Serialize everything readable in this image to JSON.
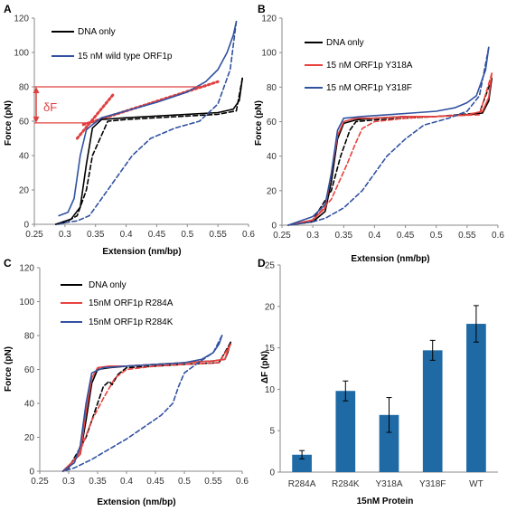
{
  "colors": {
    "dna_only": "#000000",
    "wild_type": "#3152a0",
    "y318a": "#e8423f",
    "y318f": "#3152a0",
    "r284a": "#e8423f",
    "r284k": "#3152a0",
    "bar": "#1f6aa5",
    "annotation": "#e0403f",
    "axis": "#8a8a8a"
  },
  "chart_data": [
    {
      "panel": "A",
      "type": "line",
      "xlabel": "Extension (nm/bp)",
      "ylabel": "Force (pN)",
      "xlim": [
        0.25,
        0.6
      ],
      "ylim": [
        0,
        120
      ],
      "xticks": [
        0.25,
        0.3,
        0.35,
        0.4,
        0.45,
        0.5,
        0.55,
        0.6
      ],
      "xtick_labels": [
        "0.25",
        "0.3",
        "0.35",
        "0.4",
        "0.45",
        "0.5",
        "0.55",
        "0.6"
      ],
      "yticks": [
        0,
        20,
        40,
        60,
        80,
        100,
        120
      ],
      "legend_position": "top-left",
      "legend": [
        {
          "label": "DNA only",
          "color_key": "dna_only"
        },
        {
          "label": "15 nM wild type ORF1p",
          "color_key": "wild_type"
        }
      ],
      "series": [
        {
          "name": "DNA only",
          "style": "solid",
          "color_key": "dna_only",
          "x": [
            0.285,
            0.31,
            0.325,
            0.335,
            0.345,
            0.36,
            0.4,
            0.45,
            0.5,
            0.55,
            0.575,
            0.585,
            0.59
          ],
          "y": [
            0,
            3,
            10,
            35,
            56,
            61,
            62,
            63,
            64,
            65,
            67,
            72,
            85
          ]
        },
        {
          "name": "DNA only",
          "style": "dashed",
          "color_key": "dna_only",
          "x": [
            0.59,
            0.58,
            0.55,
            0.5,
            0.45,
            0.4,
            0.37,
            0.36,
            0.355,
            0.345,
            0.335,
            0.32,
            0.3,
            0.285
          ],
          "y": [
            85,
            66,
            64,
            63,
            62,
            61,
            60,
            52,
            48,
            40,
            20,
            5,
            1,
            0
          ]
        },
        {
          "name": "15 nM wild type ORF1p",
          "style": "solid",
          "color_key": "wild_type",
          "x": [
            0.29,
            0.305,
            0.315,
            0.325,
            0.335,
            0.345,
            0.36,
            0.4,
            0.45,
            0.5,
            0.53,
            0.55,
            0.565,
            0.575,
            0.58
          ],
          "y": [
            5,
            7,
            15,
            40,
            55,
            58,
            62,
            66,
            71,
            77,
            83,
            90,
            100,
            110,
            118
          ]
        },
        {
          "name": "15 nM wild type ORF1p",
          "style": "dashed",
          "color_key": "wild_type",
          "x": [
            0.58,
            0.57,
            0.55,
            0.52,
            0.48,
            0.44,
            0.41,
            0.38,
            0.36,
            0.35,
            0.34,
            0.32,
            0.3,
            0.29
          ],
          "y": [
            118,
            90,
            70,
            60,
            56,
            50,
            40,
            25,
            15,
            10,
            5,
            2,
            1,
            0
          ]
        }
      ],
      "fit_lines": [
        {
          "x": [
            0.32,
            0.38
          ],
          "y": [
            50,
            76
          ]
        },
        {
          "x": [
            0.33,
            0.55
          ],
          "y": [
            58,
            83
          ]
        }
      ],
      "delta_f": {
        "label": "δF",
        "y_low": 59,
        "y_high": 80,
        "x_low_end": 0.34,
        "x_high_end": 0.53
      }
    },
    {
      "panel": "B",
      "type": "line",
      "xlabel": "Extension (nm/bp)",
      "ylabel": "Force (pN)",
      "xlim": [
        0.25,
        0.6
      ],
      "ylim": [
        0,
        120
      ],
      "xticks": [
        0.25,
        0.3,
        0.35,
        0.4,
        0.45,
        0.5,
        0.55,
        0.6
      ],
      "xtick_labels": [
        "0.25",
        "0.3",
        "0.35",
        "0.4",
        "0.45",
        "0.5",
        "0.55",
        "0.6"
      ],
      "yticks": [
        0,
        20,
        40,
        60,
        80,
        100,
        120
      ],
      "legend_position": "top-left",
      "legend": [
        {
          "label": "DNA only",
          "color_key": "dna_only"
        },
        {
          "label": "15 nM ORF1p Y318A",
          "color_key": "y318a"
        },
        {
          "label": "15 nM ORF1p Y318F",
          "color_key": "y318f"
        }
      ],
      "series": [
        {
          "name": "DNA only",
          "style": "solid",
          "color_key": "dna_only",
          "x": [
            0.26,
            0.3,
            0.32,
            0.33,
            0.34,
            0.35,
            0.37,
            0.4,
            0.45,
            0.5,
            0.55,
            0.575,
            0.585,
            0.59
          ],
          "y": [
            0,
            2,
            8,
            25,
            50,
            59,
            61,
            62,
            63,
            63,
            64,
            65,
            72,
            85
          ]
        },
        {
          "name": "DNA only",
          "style": "dashed",
          "color_key": "dna_only",
          "x": [
            0.59,
            0.57,
            0.5,
            0.45,
            0.4,
            0.37,
            0.36,
            0.345,
            0.33,
            0.3,
            0.26
          ],
          "y": [
            85,
            65,
            63,
            62,
            61,
            60,
            55,
            40,
            20,
            3,
            0
          ]
        },
        {
          "name": "15 nM ORF1p Y318A",
          "style": "solid",
          "color_key": "y318a",
          "x": [
            0.26,
            0.3,
            0.32,
            0.33,
            0.34,
            0.35,
            0.37,
            0.4,
            0.45,
            0.5,
            0.55,
            0.575,
            0.585,
            0.59
          ],
          "y": [
            0,
            3,
            10,
            30,
            52,
            60,
            62,
            62,
            63,
            63,
            64,
            66,
            74,
            88
          ]
        },
        {
          "name": "15 nM ORF1p Y318A",
          "style": "dashed",
          "color_key": "y318a",
          "x": [
            0.59,
            0.57,
            0.5,
            0.45,
            0.4,
            0.38,
            0.37,
            0.355,
            0.33,
            0.3,
            0.26
          ],
          "y": [
            88,
            64,
            63,
            62,
            60,
            56,
            48,
            35,
            15,
            3,
            0
          ]
        },
        {
          "name": "15 nM ORF1p Y318F",
          "style": "solid",
          "color_key": "y318f",
          "x": [
            0.26,
            0.3,
            0.32,
            0.33,
            0.34,
            0.35,
            0.38,
            0.42,
            0.46,
            0.5,
            0.53,
            0.55,
            0.565,
            0.58,
            0.585
          ],
          "y": [
            0,
            5,
            12,
            30,
            55,
            62,
            63,
            64,
            65,
            66,
            68,
            71,
            75,
            90,
            103
          ]
        },
        {
          "name": "15 nM ORF1p Y318F",
          "style": "dashed",
          "color_key": "y318f",
          "x": [
            0.585,
            0.57,
            0.55,
            0.52,
            0.48,
            0.45,
            0.42,
            0.4,
            0.38,
            0.35,
            0.32,
            0.3,
            0.26
          ],
          "y": [
            103,
            75,
            66,
            62,
            58,
            50,
            40,
            30,
            20,
            10,
            4,
            2,
            0
          ]
        }
      ]
    },
    {
      "panel": "C",
      "type": "line",
      "xlabel": "Extension (nm/bp)",
      "ylabel": "Force (pN)",
      "xlim": [
        0.25,
        0.6
      ],
      "ylim": [
        0,
        120
      ],
      "xticks": [
        0.25,
        0.3,
        0.35,
        0.4,
        0.45,
        0.5,
        0.55,
        0.6
      ],
      "xtick_labels": [
        "0.25",
        "0.3",
        "0.35",
        "0.4",
        "0.45",
        "0.5",
        "0.55",
        "0.6"
      ],
      "yticks": [
        0,
        20,
        40,
        60,
        80,
        100,
        120
      ],
      "legend_position": "top-left",
      "legend": [
        {
          "label": "DNA only",
          "color_key": "dna_only"
        },
        {
          "label": "15nM ORF1p R284A",
          "color_key": "r284a"
        },
        {
          "label": "15nM ORF1p R284K",
          "color_key": "r284k"
        }
      ],
      "series": [
        {
          "name": "DNA only",
          "style": "solid",
          "color_key": "dna_only",
          "x": [
            0.29,
            0.32,
            0.33,
            0.34,
            0.35,
            0.37,
            0.4,
            0.45,
            0.5,
            0.55,
            0.57,
            0.575,
            0.58
          ],
          "y": [
            0,
            10,
            30,
            52,
            60,
            61,
            62,
            63,
            64,
            65,
            66,
            70,
            76
          ]
        },
        {
          "name": "DNA only",
          "style": "dashed",
          "color_key": "dna_only",
          "x": [
            0.58,
            0.56,
            0.5,
            0.45,
            0.4,
            0.385,
            0.375,
            0.37,
            0.36,
            0.35,
            0.33,
            0.3,
            0.29
          ],
          "y": [
            76,
            64,
            63,
            62,
            61,
            57,
            51,
            53,
            50,
            40,
            20,
            2,
            0
          ]
        },
        {
          "name": "15nM ORF1p R284A",
          "style": "solid",
          "color_key": "r284a",
          "x": [
            0.29,
            0.32,
            0.33,
            0.34,
            0.35,
            0.37,
            0.4,
            0.45,
            0.5,
            0.55,
            0.57,
            0.575,
            0.58
          ],
          "y": [
            0,
            10,
            35,
            55,
            61,
            62,
            62,
            63,
            64,
            65,
            66,
            71,
            75
          ]
        },
        {
          "name": "15nM ORF1p R284A",
          "style": "dashed",
          "color_key": "r284a",
          "x": [
            0.58,
            0.56,
            0.5,
            0.45,
            0.4,
            0.38,
            0.36,
            0.34,
            0.32,
            0.3,
            0.29
          ],
          "y": [
            75,
            64,
            63,
            62,
            60,
            55,
            43,
            30,
            12,
            2,
            0
          ]
        },
        {
          "name": "15nM ORF1p R284K",
          "style": "solid",
          "color_key": "r284k",
          "x": [
            0.29,
            0.31,
            0.32,
            0.33,
            0.34,
            0.36,
            0.4,
            0.45,
            0.5,
            0.53,
            0.55,
            0.56,
            0.565
          ],
          "y": [
            0,
            5,
            15,
            40,
            58,
            61,
            62,
            63,
            64,
            66,
            70,
            75,
            80
          ]
        },
        {
          "name": "15nM ORF1p R284K",
          "style": "dashed",
          "color_key": "r284k",
          "x": [
            0.565,
            0.55,
            0.52,
            0.5,
            0.49,
            0.48,
            0.46,
            0.43,
            0.4,
            0.37,
            0.34,
            0.31,
            0.29
          ],
          "y": [
            80,
            70,
            63,
            58,
            50,
            40,
            33,
            26,
            19,
            13,
            7,
            2,
            0
          ]
        }
      ]
    },
    {
      "panel": "D",
      "type": "bar",
      "xlabel": "15nM Protein",
      "ylabel": "ΔF (pN)",
      "ylim": [
        0,
        25
      ],
      "yticks": [
        0,
        5,
        10,
        15,
        20,
        25
      ],
      "categories": [
        "R284A",
        "R284K",
        "Y318A",
        "Y318F",
        "WT"
      ],
      "values": [
        2.1,
        9.8,
        6.9,
        14.7,
        17.9
      ],
      "errors": [
        0.5,
        1.2,
        2.1,
        1.2,
        2.2
      ]
    }
  ]
}
